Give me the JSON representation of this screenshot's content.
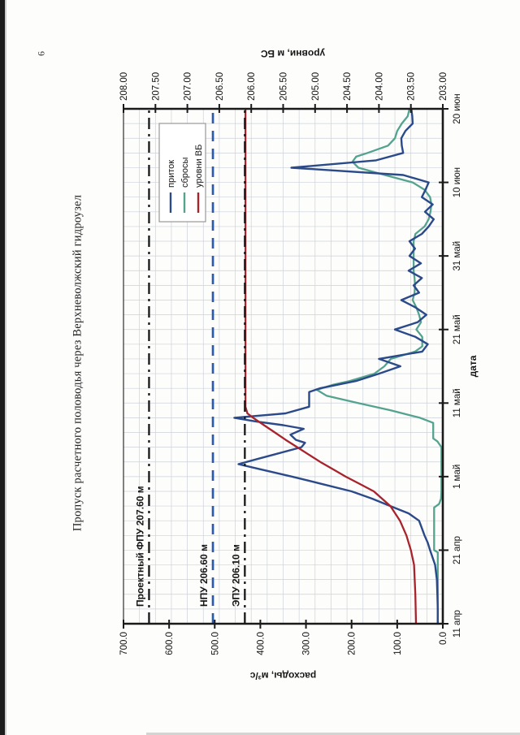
{
  "page": {
    "number": "6",
    "title": "Пропуск расчетного половодья через Верхневолжский гидроузел",
    "orientation_note": "landscape chart rotated 90deg CCW on portrait scanned page"
  },
  "chart_data": {
    "type": "line",
    "title": "Пропуск расчетного половодья через Верхневолжский гидроузел",
    "x_axis": {
      "label": "дата",
      "start_day": 0,
      "end_day": 70,
      "tick_days": [
        0,
        10,
        20,
        30,
        40,
        50,
        60,
        70
      ],
      "tick_labels": [
        "11 апр",
        "21 апр",
        "1 май",
        "11 май",
        "21 май",
        "31 май",
        "10 июн",
        "20 июн"
      ],
      "minor_grid_every_days": 2
    },
    "y_left": {
      "label": "расходы, м³/с",
      "min": 0,
      "max": 700,
      "tick_step": 100,
      "tick_labels": [
        "700.0",
        "600.0",
        "500.0",
        "400.0",
        "300.0",
        "200.0",
        "100.0",
        "0.0"
      ]
    },
    "y_right": {
      "label": "уровни, м БС",
      "min": 203,
      "max": 208,
      "tick_step": 0.5,
      "tick_labels": [
        "208.00",
        "207.50",
        "207.00",
        "206.50",
        "206.00",
        "205.50",
        "205.00",
        "204.50",
        "204.00",
        "203.50",
        "203.00"
      ],
      "minor_grid_every": 0.25
    },
    "grid": {
      "on": true,
      "color": "#ccd2da"
    },
    "legend": {
      "position": "upper-right-inside",
      "border_color": "#8f8f8f"
    },
    "series": [
      {
        "name": "приток",
        "axis": "left",
        "color": "#2b4a8a",
        "width": 2.4,
        "points": [
          [
            0,
            11
          ],
          [
            2,
            11
          ],
          [
            4,
            12
          ],
          [
            6,
            13
          ],
          [
            8,
            17
          ],
          [
            10,
            28
          ],
          [
            11,
            33
          ],
          [
            12,
            40
          ],
          [
            13,
            46
          ],
          [
            14,
            52
          ],
          [
            15,
            75
          ],
          [
            16,
            115
          ],
          [
            17,
            155
          ],
          [
            18,
            200
          ],
          [
            19,
            265
          ],
          [
            20,
            330
          ],
          [
            21,
            400
          ],
          [
            21.7,
            448
          ],
          [
            22.5,
            400
          ],
          [
            23,
            370
          ],
          [
            24,
            310
          ],
          [
            24.6,
            302
          ],
          [
            25,
            322
          ],
          [
            25.7,
            334
          ],
          [
            26.5,
            305
          ],
          [
            27,
            350
          ],
          [
            27.5,
            410
          ],
          [
            28,
            457
          ],
          [
            28.6,
            345
          ],
          [
            29.5,
            293
          ],
          [
            31.5,
            293
          ],
          [
            32,
            270
          ],
          [
            33,
            190
          ],
          [
            34,
            140
          ],
          [
            35,
            93
          ],
          [
            36,
            140
          ],
          [
            37,
            45
          ],
          [
            38,
            33
          ],
          [
            39,
            60
          ],
          [
            40,
            105
          ],
          [
            41,
            55
          ],
          [
            42,
            36
          ],
          [
            43,
            60
          ],
          [
            44,
            91
          ],
          [
            45,
            52
          ],
          [
            46,
            64
          ],
          [
            47,
            46
          ],
          [
            48,
            75
          ],
          [
            49,
            48
          ],
          [
            50,
            73
          ],
          [
            51,
            61
          ],
          [
            52,
            73
          ],
          [
            53,
            46
          ],
          [
            54,
            31
          ],
          [
            55,
            20
          ],
          [
            56,
            39
          ],
          [
            57,
            22
          ],
          [
            58,
            46
          ],
          [
            59,
            38
          ],
          [
            60,
            31
          ],
          [
            61,
            87
          ],
          [
            62,
            332
          ],
          [
            63,
            146
          ],
          [
            64,
            87
          ],
          [
            65,
            90
          ],
          [
            66,
            91
          ],
          [
            67,
            82
          ],
          [
            68,
            66
          ],
          [
            69,
            67
          ],
          [
            70,
            69
          ]
        ]
      },
      {
        "name": "сбросы",
        "axis": "left",
        "color": "#54a38e",
        "width": 2.3,
        "points": [
          [
            0,
            11
          ],
          [
            3,
            11
          ],
          [
            6,
            11
          ],
          [
            9.7,
            11
          ],
          [
            10,
            19
          ],
          [
            13,
            19
          ],
          [
            15.8,
            19
          ],
          [
            16.3,
            8
          ],
          [
            17,
            4
          ],
          [
            18,
            3
          ],
          [
            21,
            3
          ],
          [
            24,
            3
          ],
          [
            24.8,
            12
          ],
          [
            25.2,
            21
          ],
          [
            27.3,
            21
          ],
          [
            28,
            50
          ],
          [
            29,
            114
          ],
          [
            30,
            186
          ],
          [
            31,
            255
          ],
          [
            31.8,
            276
          ],
          [
            32.5,
            240
          ],
          [
            33,
            204
          ],
          [
            34,
            150
          ],
          [
            35,
            128
          ],
          [
            36,
            114
          ],
          [
            37,
            61
          ],
          [
            37.7,
            45
          ],
          [
            39,
            45
          ],
          [
            40,
            58
          ],
          [
            41,
            48
          ],
          [
            42,
            52
          ],
          [
            43,
            58
          ],
          [
            44,
            66
          ],
          [
            45,
            62
          ],
          [
            46,
            61
          ],
          [
            47,
            62
          ],
          [
            48,
            64
          ],
          [
            50,
            64
          ],
          [
            52,
            64
          ],
          [
            53,
            60
          ],
          [
            54,
            40
          ],
          [
            55,
            31
          ],
          [
            56,
            27
          ],
          [
            57,
            25
          ],
          [
            58,
            28
          ],
          [
            59,
            40
          ],
          [
            60,
            66
          ],
          [
            61,
            127
          ],
          [
            62,
            185
          ],
          [
            62.8,
            198
          ],
          [
            63.5,
            190
          ],
          [
            64,
            165
          ],
          [
            65,
            120
          ],
          [
            66,
            105
          ],
          [
            67,
            100
          ],
          [
            68,
            90
          ],
          [
            69,
            77
          ],
          [
            70,
            73
          ]
        ]
      },
      {
        "name": "уровни ВБ",
        "axis": "right",
        "color": "#a8232b",
        "width": 2.3,
        "points": [
          [
            0,
            203.42
          ],
          [
            4,
            203.43
          ],
          [
            8,
            203.45
          ],
          [
            10,
            203.5
          ],
          [
            12,
            203.57
          ],
          [
            14,
            203.67
          ],
          [
            16,
            203.82
          ],
          [
            18,
            204.08
          ],
          [
            19,
            204.3
          ],
          [
            20,
            204.52
          ],
          [
            21,
            204.72
          ],
          [
            22,
            204.92
          ],
          [
            23,
            205.1
          ],
          [
            24,
            205.28
          ],
          [
            25,
            205.46
          ],
          [
            26,
            205.63
          ],
          [
            27,
            205.8
          ],
          [
            28,
            205.97
          ],
          [
            28.6,
            206.06
          ],
          [
            29.5,
            206.09
          ],
          [
            70,
            206.09
          ]
        ]
      }
    ],
    "reference_lines": [
      {
        "label": "Проектный ФПУ 207.60 м",
        "value": 207.6,
        "axis": "right",
        "style": "dashdot",
        "color": "#161616"
      },
      {
        "label": "НПУ 206.60 м",
        "value": 206.6,
        "axis": "right",
        "style": "dash",
        "color": "#2b5cab"
      },
      {
        "label": "ЭПУ 206.10 м",
        "value": 206.1,
        "axis": "right",
        "style": "dashdot",
        "color": "#161616"
      }
    ],
    "axis_color": "#1a1a1a"
  }
}
